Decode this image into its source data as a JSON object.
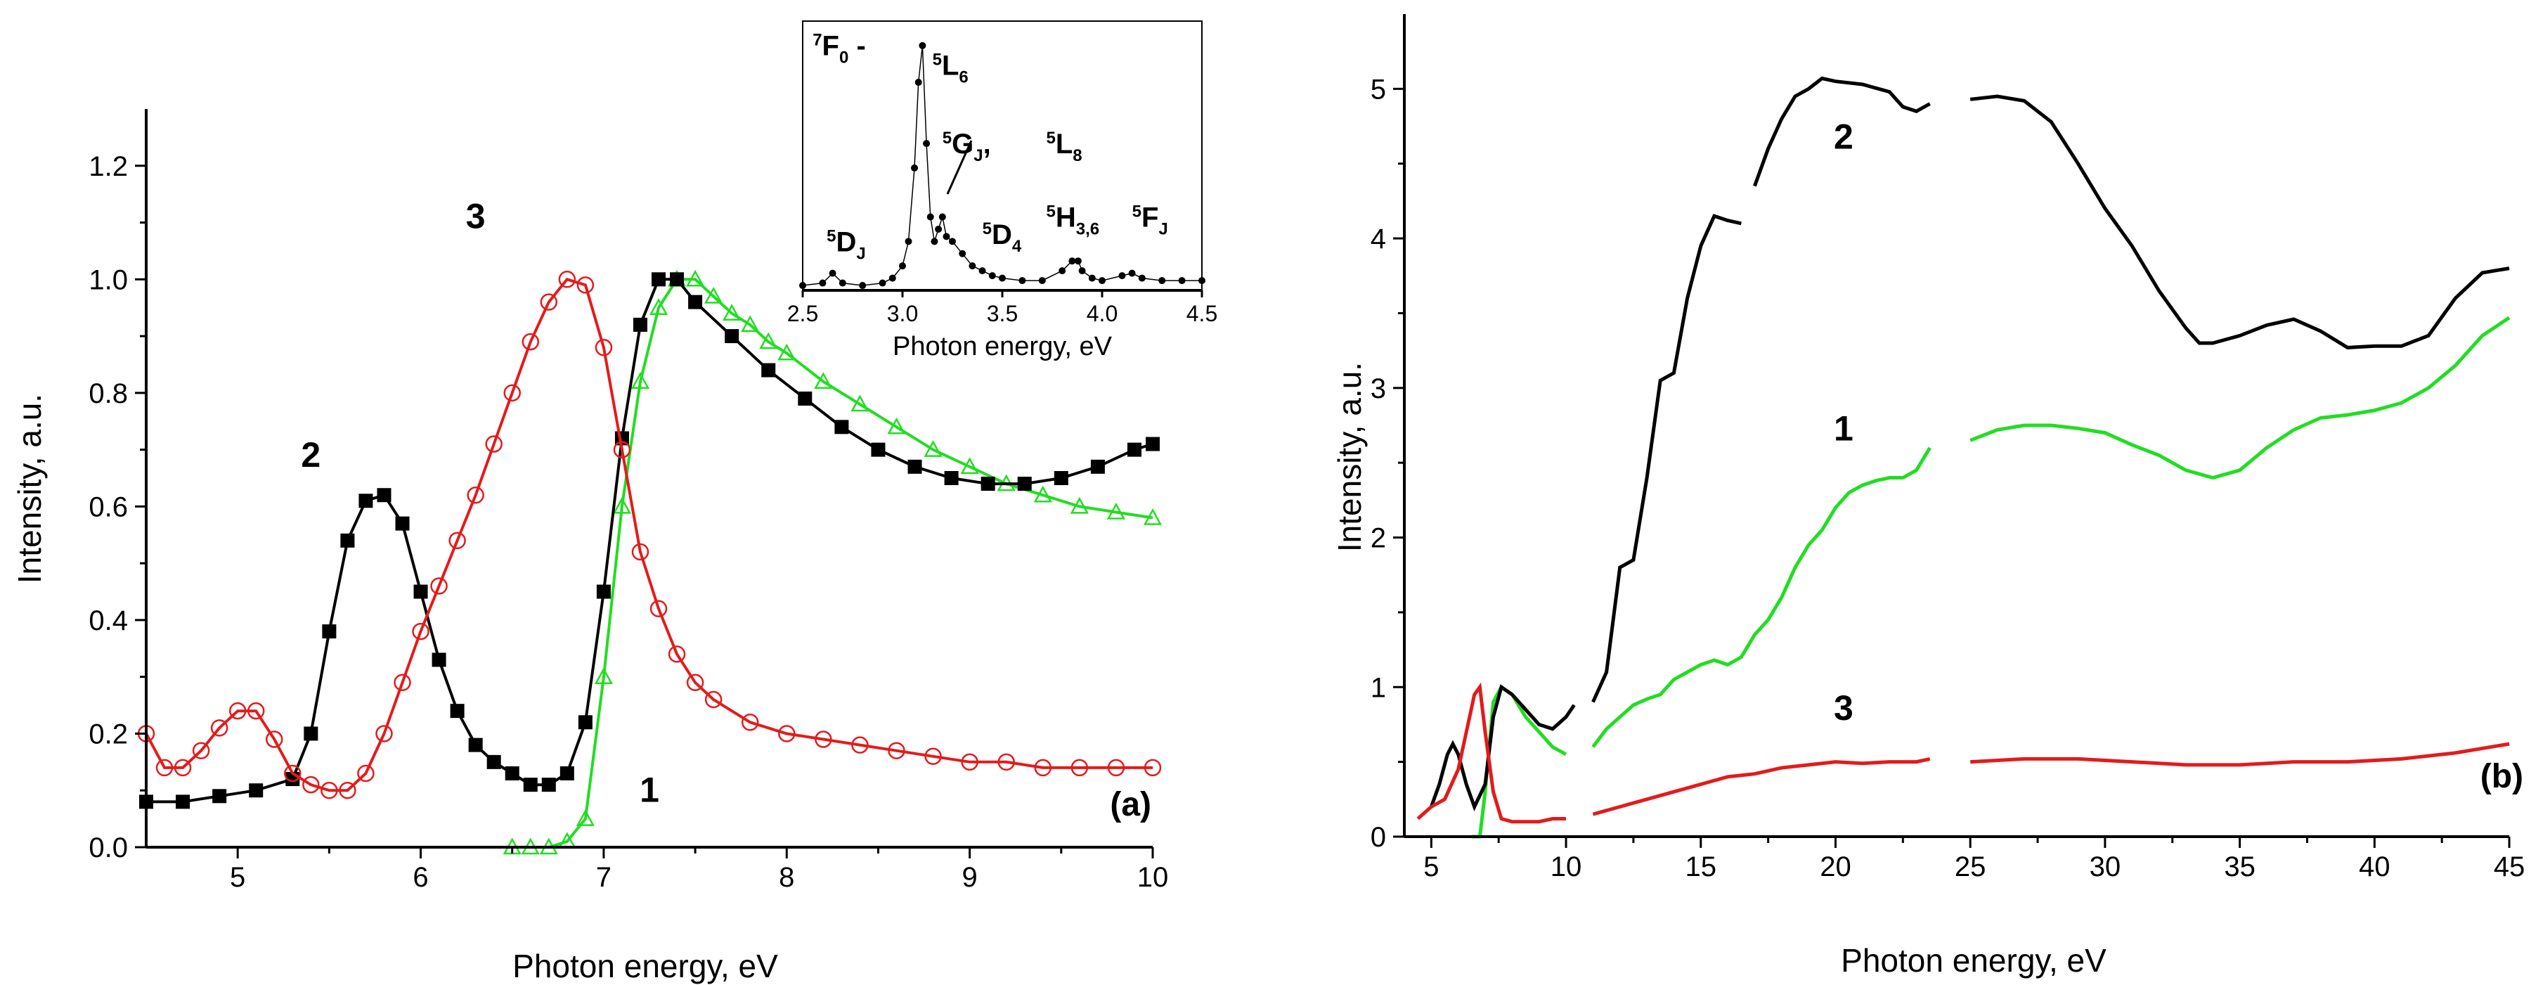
{
  "colors": {
    "black": "#000000",
    "red": "#e31b1b",
    "green": "#22dd22"
  },
  "chart_data": [
    {
      "type": "line",
      "panel_label": "(a)",
      "xlabel": "Photon energy, eV",
      "ylabel": "Intensity, a.u.",
      "xlim": [
        4.5,
        10
      ],
      "ylim": [
        0,
        1.3
      ],
      "xticks": [
        5,
        6,
        7,
        8,
        9,
        10
      ],
      "xtick_labels": [
        "5",
        "6",
        "7",
        "8",
        "9",
        "10"
      ],
      "yticks": [
        0,
        0.2,
        0.4,
        0.6,
        0.8,
        1.0,
        1.2
      ],
      "ytick_labels": [
        "0.0",
        "0.2",
        "0.4",
        "0.6",
        "0.8",
        "1.0",
        "1.2"
      ],
      "series": [
        {
          "name": "1",
          "color": "#22dd22",
          "marker": "triangle-open",
          "x": [
            6.5,
            6.6,
            6.7,
            6.8,
            6.9,
            7.0,
            7.1,
            7.2,
            7.3,
            7.4,
            7.5,
            7.6,
            7.7,
            7.8,
            7.9,
            8.0,
            8.2,
            8.4,
            8.6,
            8.8,
            9.0,
            9.2,
            9.4,
            9.6,
            9.8,
            10.0
          ],
          "y": [
            0.0,
            0.0,
            0.0,
            0.01,
            0.05,
            0.3,
            0.6,
            0.82,
            0.95,
            1.0,
            1.0,
            0.97,
            0.94,
            0.92,
            0.89,
            0.87,
            0.82,
            0.78,
            0.74,
            0.7,
            0.67,
            0.64,
            0.62,
            0.6,
            0.59,
            0.58
          ]
        },
        {
          "name": "2",
          "color": "#000000",
          "marker": "square-filled",
          "x": [
            4.5,
            4.7,
            4.9,
            5.1,
            5.3,
            5.4,
            5.5,
            5.6,
            5.7,
            5.8,
            5.9,
            6.0,
            6.1,
            6.2,
            6.3,
            6.4,
            6.5,
            6.6,
            6.7,
            6.8,
            6.9,
            7.0,
            7.1,
            7.2,
            7.3,
            7.4,
            7.5,
            7.7,
            7.9,
            8.1,
            8.3,
            8.5,
            8.7,
            8.9,
            9.1,
            9.3,
            9.5,
            9.7,
            9.9,
            10.0
          ],
          "y": [
            0.08,
            0.08,
            0.09,
            0.1,
            0.12,
            0.2,
            0.38,
            0.54,
            0.61,
            0.62,
            0.57,
            0.45,
            0.33,
            0.24,
            0.18,
            0.15,
            0.13,
            0.11,
            0.11,
            0.13,
            0.22,
            0.45,
            0.72,
            0.92,
            1.0,
            1.0,
            0.96,
            0.9,
            0.84,
            0.79,
            0.74,
            0.7,
            0.67,
            0.65,
            0.64,
            0.64,
            0.65,
            0.67,
            0.7,
            0.71
          ]
        },
        {
          "name": "3",
          "color": "#e31b1b",
          "marker": "circle-open",
          "x": [
            4.5,
            4.6,
            4.7,
            4.8,
            4.9,
            5.0,
            5.1,
            5.2,
            5.3,
            5.4,
            5.5,
            5.6,
            5.7,
            5.8,
            5.9,
            6.0,
            6.1,
            6.2,
            6.3,
            6.4,
            6.5,
            6.6,
            6.7,
            6.8,
            6.9,
            7.0,
            7.1,
            7.2,
            7.3,
            7.4,
            7.5,
            7.6,
            7.8,
            8.0,
            8.2,
            8.4,
            8.6,
            8.8,
            9.0,
            9.2,
            9.4,
            9.6,
            9.8,
            10.0
          ],
          "y": [
            0.2,
            0.14,
            0.14,
            0.17,
            0.21,
            0.24,
            0.24,
            0.19,
            0.13,
            0.11,
            0.1,
            0.1,
            0.13,
            0.2,
            0.29,
            0.38,
            0.46,
            0.54,
            0.62,
            0.71,
            0.8,
            0.89,
            0.96,
            1.0,
            0.99,
            0.88,
            0.7,
            0.52,
            0.42,
            0.34,
            0.29,
            0.26,
            0.22,
            0.2,
            0.19,
            0.18,
            0.17,
            0.16,
            0.15,
            0.15,
            0.14,
            0.14,
            0.14,
            0.14
          ]
        }
      ],
      "curve_labels": [
        {
          "text": "1",
          "x": 7.25,
          "y": 0.08
        },
        {
          "text": "2",
          "x": 5.4,
          "y": 0.67
        },
        {
          "text": "3",
          "x": 6.3,
          "y": 1.09
        }
      ],
      "inset": {
        "type": "line",
        "xlabel": "Photon energy, eV",
        "xlim": [
          2.5,
          4.5
        ],
        "ylim": [
          0,
          1.1
        ],
        "xticks": [
          2.5,
          3.0,
          3.5,
          4.0,
          4.5
        ],
        "xtick_labels": [
          "2.5",
          "3.0",
          "3.5",
          "4.0",
          "4.5"
        ],
        "color": "#000000",
        "x": [
          2.5,
          2.6,
          2.65,
          2.7,
          2.8,
          2.9,
          2.95,
          3.0,
          3.03,
          3.06,
          3.08,
          3.1,
          3.12,
          3.14,
          3.16,
          3.18,
          3.2,
          3.22,
          3.25,
          3.3,
          3.35,
          3.4,
          3.45,
          3.5,
          3.6,
          3.7,
          3.8,
          3.85,
          3.88,
          3.9,
          3.95,
          4.0,
          4.1,
          4.15,
          4.2,
          4.3,
          4.4,
          4.5
        ],
        "y": [
          0.02,
          0.03,
          0.07,
          0.03,
          0.02,
          0.03,
          0.05,
          0.1,
          0.2,
          0.5,
          0.85,
          1.0,
          0.6,
          0.3,
          0.2,
          0.25,
          0.3,
          0.22,
          0.2,
          0.15,
          0.1,
          0.08,
          0.06,
          0.05,
          0.04,
          0.04,
          0.08,
          0.12,
          0.12,
          0.08,
          0.05,
          0.04,
          0.06,
          0.07,
          0.05,
          0.04,
          0.04,
          0.04
        ]
      },
      "annotations": [
        {
          "base": "F",
          "sup": "7",
          "sub": "0",
          "suffix": " -",
          "x": 2.55,
          "y": 0.96
        },
        {
          "base": "L",
          "sup": "5",
          "sub": "6",
          "suffix": "",
          "x": 3.15,
          "y": 0.88
        },
        {
          "base": "G",
          "sup": "5",
          "sub": "J",
          "suffix": ",",
          "x": 3.2,
          "y": 0.56
        },
        {
          "base": "L",
          "sup": "5",
          "sub": "8",
          "suffix": "",
          "x": 3.72,
          "y": 0.56
        },
        {
          "base": "D",
          "sup": "5",
          "sub": "J",
          "suffix": "",
          "x": 2.62,
          "y": 0.16
        },
        {
          "base": "D",
          "sup": "5",
          "sub": "4",
          "suffix": "",
          "x": 3.4,
          "y": 0.19
        },
        {
          "base": "H",
          "sup": "5",
          "sub": "3,6",
          "suffix": "",
          "x": 3.72,
          "y": 0.26
        },
        {
          "base": "F",
          "sup": "5",
          "sub": "J",
          "suffix": "",
          "x": 4.15,
          "y": 0.26
        }
      ]
    },
    {
      "type": "line",
      "panel_label": "(b)",
      "xlabel": "Photon energy, eV",
      "ylabel": "Intensity, a.u.",
      "xlim": [
        4,
        45
      ],
      "ylim": [
        0,
        5.5
      ],
      "xticks": [
        5,
        10,
        15,
        20,
        25,
        30,
        35,
        40,
        45
      ],
      "xtick_labels": [
        "5",
        "10",
        "15",
        "20",
        "25",
        "30",
        "35",
        "40",
        "45"
      ],
      "yticks": [
        0,
        1,
        2,
        3,
        4,
        5
      ],
      "ytick_labels": [
        "0",
        "1",
        "2",
        "3",
        "4",
        "5"
      ],
      "series": [
        {
          "name": "1",
          "color": "#22dd22",
          "segments": [
            {
              "x": [
                6.5,
                6.8,
                7.0,
                7.3,
                7.6,
                8.0,
                8.5,
                9.0,
                9.5,
                10.0
              ],
              "y": [
                0.0,
                0.0,
                0.3,
                0.9,
                1.0,
                0.95,
                0.8,
                0.7,
                0.6,
                0.55
              ]
            },
            {
              "x": [
                11.0,
                11.5,
                12.0,
                12.5,
                13.0,
                13.5,
                14.0,
                14.5,
                15.0,
                15.5,
                16.0,
                16.5,
                17.0,
                17.5,
                18.0,
                18.5,
                19.0,
                19.5,
                20.0,
                20.5,
                21.0,
                21.5,
                22.0,
                22.5,
                23.0,
                23.5
              ],
              "y": [
                0.6,
                0.72,
                0.8,
                0.88,
                0.92,
                0.95,
                1.05,
                1.1,
                1.15,
                1.18,
                1.15,
                1.2,
                1.35,
                1.45,
                1.6,
                1.8,
                1.95,
                2.05,
                2.2,
                2.3,
                2.35,
                2.38,
                2.4,
                2.4,
                2.45,
                2.6
              ]
            },
            {
              "x": [
                25,
                26,
                27,
                28,
                29,
                30,
                31,
                32,
                33,
                34,
                35,
                36,
                37,
                38,
                39,
                40,
                41,
                42,
                43,
                44,
                45
              ],
              "y": [
                2.65,
                2.72,
                2.75,
                2.75,
                2.73,
                2.7,
                2.62,
                2.55,
                2.45,
                2.4,
                2.45,
                2.6,
                2.72,
                2.8,
                2.82,
                2.85,
                2.9,
                3.0,
                3.15,
                3.35,
                3.47
              ]
            }
          ]
        },
        {
          "name": "2",
          "color": "#000000",
          "segments": [
            {
              "x": [
                5.0,
                5.3,
                5.6,
                5.8,
                6.0,
                6.3,
                6.6,
                7.0,
                7.3,
                7.6,
                8.0,
                8.5,
                9.0,
                9.5,
                10.0,
                10.3
              ],
              "y": [
                0.2,
                0.35,
                0.55,
                0.62,
                0.55,
                0.35,
                0.2,
                0.35,
                0.8,
                1.0,
                0.95,
                0.85,
                0.75,
                0.72,
                0.8,
                0.88
              ]
            },
            {
              "x": [
                11.0,
                11.5,
                12.0,
                12.5,
                13.0,
                13.5,
                14.0,
                14.5,
                15.0,
                15.5,
                16.0,
                16.5
              ],
              "y": [
                0.9,
                1.1,
                1.8,
                1.85,
                2.4,
                3.05,
                3.1,
                3.6,
                3.95,
                4.15,
                4.12,
                4.1
              ]
            },
            {
              "x": [
                17.0,
                17.5,
                18.0,
                18.5,
                19.0,
                19.5,
                20.0,
                21.0,
                22.0,
                22.5,
                23.0,
                23.5
              ],
              "y": [
                4.35,
                4.6,
                4.8,
                4.95,
                5.0,
                5.07,
                5.05,
                5.03,
                4.98,
                4.88,
                4.85,
                4.9
              ]
            },
            {
              "x": [
                25,
                26,
                27,
                28,
                29,
                30,
                31,
                32,
                33,
                33.5,
                34,
                35,
                36,
                37,
                38,
                39,
                40,
                41,
                42,
                43,
                44,
                45
              ],
              "y": [
                4.93,
                4.95,
                4.92,
                4.78,
                4.5,
                4.2,
                3.95,
                3.65,
                3.4,
                3.3,
                3.3,
                3.35,
                3.42,
                3.46,
                3.38,
                3.27,
                3.28,
                3.28,
                3.35,
                3.6,
                3.77,
                3.8
              ]
            }
          ]
        },
        {
          "name": "3",
          "color": "#e31b1b",
          "segments": [
            {
              "x": [
                4.5,
                5.0,
                5.5,
                6.0,
                6.3,
                6.6,
                6.8,
                7.0,
                7.3,
                7.6,
                8.0,
                8.5,
                9.0,
                9.5,
                10.0
              ],
              "y": [
                0.12,
                0.2,
                0.25,
                0.45,
                0.7,
                0.95,
                1.0,
                0.7,
                0.3,
                0.12,
                0.1,
                0.1,
                0.1,
                0.12,
                0.12
              ]
            },
            {
              "x": [
                11.0,
                12.0,
                13.0,
                14.0,
                15.0,
                16.0,
                17.0,
                18.0,
                19.0,
                20.0,
                21.0,
                22.0,
                23.0,
                23.5
              ],
              "y": [
                0.15,
                0.2,
                0.25,
                0.3,
                0.35,
                0.4,
                0.42,
                0.46,
                0.48,
                0.5,
                0.49,
                0.5,
                0.5,
                0.52
              ]
            },
            {
              "x": [
                25,
                27,
                29,
                31,
                33,
                35,
                37,
                39,
                41,
                43,
                45
              ],
              "y": [
                0.5,
                0.52,
                0.52,
                0.5,
                0.48,
                0.48,
                0.5,
                0.5,
                0.52,
                0.56,
                0.62
              ]
            }
          ]
        }
      ],
      "curve_labels": [
        {
          "text": "1",
          "x": 20.3,
          "y": 2.65
        },
        {
          "text": "2",
          "x": 20.3,
          "y": 4.6
        },
        {
          "text": "3",
          "x": 20.3,
          "y": 0.78
        }
      ]
    }
  ]
}
